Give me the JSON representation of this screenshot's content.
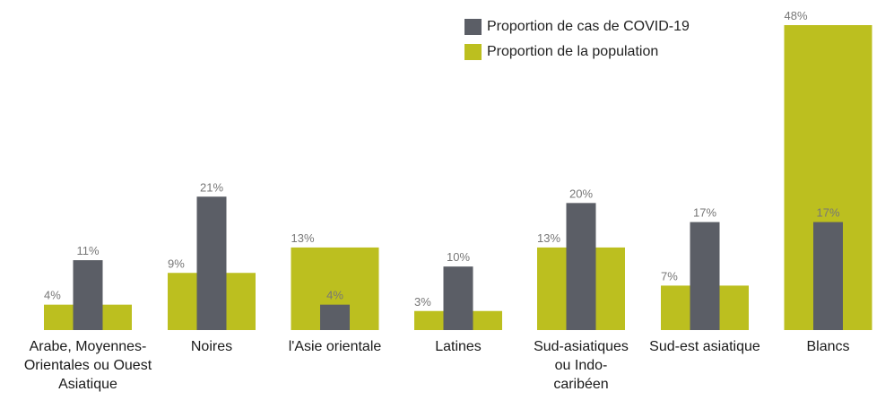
{
  "chart_data": {
    "type": "bar",
    "title": "",
    "xlabel": "",
    "ylabel": "",
    "ylim": [
      0,
      48
    ],
    "grid": false,
    "legend_position": "top-right",
    "categories": [
      "Arabe, Moyennes-\nOrientales ou Ouest\nAsiatique",
      "Noires",
      "l'Asie orientale",
      "Latines",
      "Sud-asiatiques\nou Indo-\ncaribéen",
      "Sud-est asiatique",
      "Blancs"
    ],
    "series": [
      {
        "name": "Proportion de cas de COVID-19",
        "color": "#5b5e66",
        "values": [
          11,
          21,
          4,
          10,
          20,
          17,
          17
        ],
        "labels": [
          "11%",
          "21%",
          "4%",
          "10%",
          "20%",
          "17%",
          "17%"
        ]
      },
      {
        "name": "Proportion de la population",
        "color": "#bcbf1f",
        "values": [
          4,
          9,
          13,
          3,
          13,
          7,
          48
        ],
        "labels": [
          "4%",
          "9%",
          "13%",
          "3%",
          "13%",
          "7%",
          "48%"
        ]
      }
    ]
  }
}
